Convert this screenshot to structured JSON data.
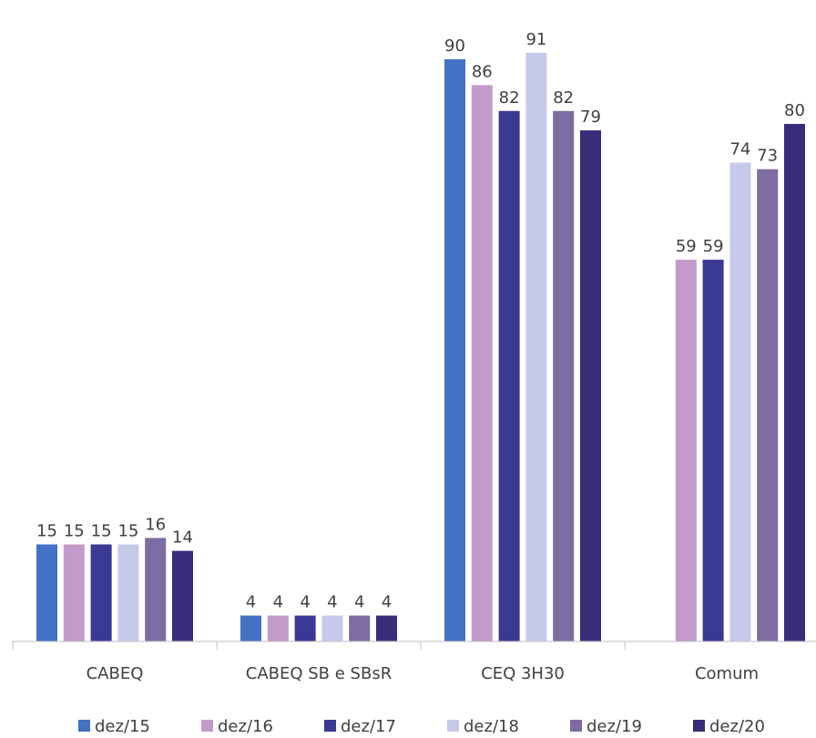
{
  "chart_data": {
    "type": "bar",
    "categories": [
      "CABEQ",
      "CABEQ SB e SBsR",
      "CEQ 3H30",
      "Comum"
    ],
    "series": [
      {
        "name": "dez/15",
        "color": "#4472C4",
        "values": [
          15,
          4,
          90,
          null
        ]
      },
      {
        "name": "dez/16",
        "color": "#C39BCA",
        "values": [
          15,
          4,
          86,
          59
        ]
      },
      {
        "name": "dez/17",
        "color": "#3A3994",
        "values": [
          15,
          4,
          82,
          59
        ]
      },
      {
        "name": "dez/18",
        "color": "#C7C9EA",
        "values": [
          15,
          4,
          91,
          74
        ]
      },
      {
        "name": "dez/19",
        "color": "#7D6DA2",
        "values": [
          16,
          4,
          82,
          73
        ]
      },
      {
        "name": "dez/20",
        "color": "#372D7A",
        "values": [
          14,
          4,
          79,
          80
        ]
      }
    ],
    "ylim": [
      0,
      100
    ],
    "grid": false,
    "legend": "bottom",
    "data_labels": true
  }
}
